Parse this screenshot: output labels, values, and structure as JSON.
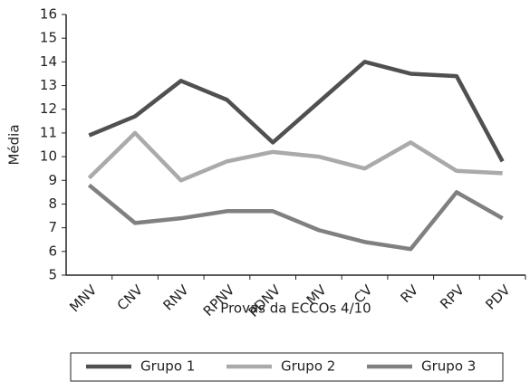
{
  "chart_data": {
    "type": "line",
    "x_label": "Provas da ECCOs 4/10",
    "y_label": "Média",
    "categories": [
      "MNV",
      "CNV",
      "RNV",
      "RPNV",
      "PDNV",
      "MV",
      "CV",
      "RV",
      "RPV",
      "PDV"
    ],
    "series": [
      {
        "name": "Grupo 1",
        "color": "#505050",
        "values": [
          10.9,
          11.7,
          13.2,
          12.4,
          10.6,
          12.3,
          14.0,
          13.5,
          13.4,
          9.8
        ]
      },
      {
        "name": "Grupo 2",
        "color": "#aaaaaa",
        "values": [
          9.1,
          11.0,
          9.0,
          9.8,
          10.2,
          10.0,
          9.5,
          10.6,
          9.4,
          9.3
        ]
      },
      {
        "name": "Grupo 3",
        "color": "#808080",
        "values": [
          8.8,
          7.2,
          7.4,
          7.7,
          7.7,
          6.9,
          6.4,
          6.1,
          8.5,
          7.4
        ]
      }
    ],
    "ylim": [
      5,
      16
    ],
    "yticks": [
      5,
      6,
      7,
      8,
      9,
      10,
      11,
      12,
      13,
      14,
      15,
      16
    ]
  }
}
